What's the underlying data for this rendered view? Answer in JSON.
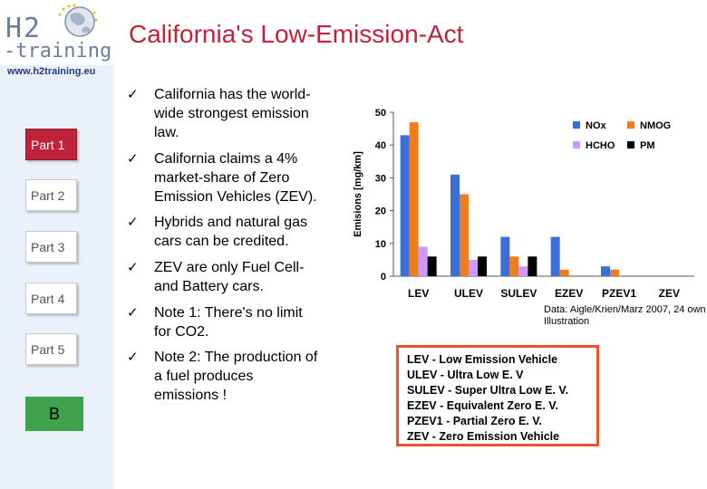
{
  "header": {
    "title": "California's Low-Emission-Act",
    "logo_text_top": "H2",
    "logo_text_bottom": "-training",
    "url": "www.h2training.eu"
  },
  "sidebar": {
    "parts": [
      {
        "label": "Part 1",
        "active": true
      },
      {
        "label": "Part 2",
        "active": false
      },
      {
        "label": "Part 3",
        "active": false
      },
      {
        "label": "Part 4",
        "active": false
      },
      {
        "label": "Part 5",
        "active": false
      }
    ],
    "b_button": "B"
  },
  "bullets": [
    {
      "lines": [
        "California has the world-",
        "wide strongest emission",
        "law."
      ]
    },
    {
      "lines": [
        "California claims a 4%",
        "market-share of Zero",
        "Emission Vehicles (ZEV)."
      ]
    },
    {
      "lines": [
        "Hybrids and natural gas",
        "cars can be credited."
      ]
    },
    {
      "lines": [
        "ZEV are only Fuel Cell-",
        "and Battery cars."
      ]
    },
    {
      "lines": [
        "Note 1: There's no limit",
        "for CO2."
      ]
    },
    {
      "lines": [
        "Note 2: The production of",
        "a fuel produces",
        "emissions !"
      ]
    }
  ],
  "bullet_icon": "check-mark",
  "source": "Data: Aigle/Krien/Marz 2007, 24 own Illustration",
  "abbreviations": [
    "LEV - Low Emission Vehicle",
    "ULEV - Ultra Low E. V",
    "SULEV - Super Ultra Low E. V.",
    "EZEV - Equivalent Zero E. V.",
    "PZEV1 - Partial Zero E. V.",
    "ZEV - Zero Emission Vehicle"
  ],
  "colors": {
    "title": "#c0223b",
    "active_part": "#c0223b",
    "b_button": "#3fa34d",
    "abbrev_border": "#e8542a"
  },
  "chart_data": {
    "type": "bar",
    "categories": [
      "LEV",
      "ULEV",
      "SULEV",
      "EZEV",
      "PZEV1",
      "ZEV"
    ],
    "series": [
      {
        "name": "NOx",
        "color": "#3a6fd8",
        "values": [
          43,
          31,
          12,
          12,
          3,
          0
        ]
      },
      {
        "name": "NMOG",
        "color": "#f07d1a",
        "values": [
          47,
          25,
          6,
          2,
          2,
          0
        ]
      },
      {
        "name": "HCHO",
        "color": "#cc99ff",
        "values": [
          9,
          5,
          3,
          0,
          0,
          0
        ]
      },
      {
        "name": "PM",
        "color": "#000000",
        "values": [
          6,
          6,
          6,
          0,
          0,
          0
        ]
      }
    ],
    "ylabel": "Emisions [mg/km]",
    "ylim": [
      0,
      50
    ],
    "yticks": [
      0,
      10,
      20,
      30,
      40,
      50
    ],
    "grid": false,
    "legend_position": "top-right"
  }
}
